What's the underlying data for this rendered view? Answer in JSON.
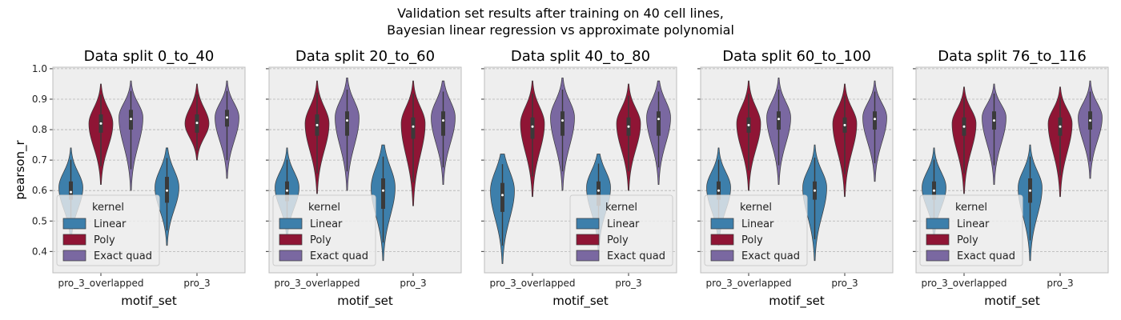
{
  "figure": {
    "title_line1": "Validation set results after training on 40 cell lines,",
    "title_line2": "Bayesian linear regression vs approximate polynomial"
  },
  "colors": {
    "Linear": "#3d7fab",
    "Poly": "#8f1535",
    "Exact quad": "#7a68a1",
    "panel_bg": "#eeeeee",
    "grid": "#b2b2b2"
  },
  "chart_data": [
    {
      "type": "violin",
      "title": "Data split 0_to_40",
      "xlabel": "motif_set",
      "ylabel": "pearson_r",
      "ylim": [
        0.33,
        1.005
      ],
      "yticks": [
        "0.4",
        "0.5",
        "0.6",
        "0.7",
        "0.8",
        "0.9",
        "1.0"
      ],
      "categories": [
        "pro_3_overlapped",
        "pro_3"
      ],
      "legend": {
        "title": "kernel",
        "placement": "lower-left",
        "entries": [
          "Linear",
          "Poly",
          "Exact quad"
        ]
      },
      "series": [
        {
          "name": "Linear",
          "min": [
            0.43,
            0.42
          ],
          "q1": [
            0.57,
            0.56
          ],
          "median": [
            0.595,
            0.6
          ],
          "q3": [
            0.63,
            0.645
          ],
          "max": [
            0.74,
            0.74
          ],
          "mode": [
            0.61,
            0.61
          ]
        },
        {
          "name": "Poly",
          "min": [
            0.62,
            0.7
          ],
          "q1": [
            0.79,
            0.79
          ],
          "median": [
            0.82,
            0.822
          ],
          "q3": [
            0.85,
            0.85
          ],
          "max": [
            0.95,
            0.95
          ],
          "mode": [
            0.82,
            0.82
          ]
        },
        {
          "name": "Exact quad",
          "min": [
            0.6,
            0.64
          ],
          "q1": [
            0.8,
            0.81
          ],
          "median": [
            0.835,
            0.84
          ],
          "q3": [
            0.865,
            0.865
          ],
          "max": [
            0.96,
            0.96
          ],
          "mode": [
            0.84,
            0.84
          ]
        }
      ]
    },
    {
      "type": "violin",
      "title": "Data split 20_to_60",
      "xlabel": "motif_set",
      "ylabel": "",
      "ylim": [
        0.33,
        1.005
      ],
      "yticks": [
        "0.4",
        "0.5",
        "0.6",
        "0.7",
        "0.8",
        "0.9",
        "1.0"
      ],
      "categories": [
        "pro_3_overlapped",
        "pro_3"
      ],
      "legend": {
        "title": "kernel",
        "placement": "lower-left",
        "entries": [
          "Linear",
          "Poly",
          "Exact quad"
        ]
      },
      "series": [
        {
          "name": "Linear",
          "min": [
            0.44,
            0.37
          ],
          "q1": [
            0.565,
            0.54
          ],
          "median": [
            0.6,
            0.6
          ],
          "q3": [
            0.63,
            0.64
          ],
          "max": [
            0.74,
            0.75
          ],
          "mode": [
            0.61,
            0.61
          ]
        },
        {
          "name": "Poly",
          "min": [
            0.59,
            0.55
          ],
          "q1": [
            0.78,
            0.77
          ],
          "median": [
            0.815,
            0.81
          ],
          "q3": [
            0.85,
            0.84
          ],
          "max": [
            0.96,
            0.96
          ],
          "mode": [
            0.82,
            0.82
          ]
        },
        {
          "name": "Exact quad",
          "min": [
            0.6,
            0.62
          ],
          "q1": [
            0.78,
            0.78
          ],
          "median": [
            0.83,
            0.83
          ],
          "q3": [
            0.86,
            0.86
          ],
          "max": [
            0.97,
            0.96
          ],
          "mode": [
            0.84,
            0.84
          ]
        }
      ]
    },
    {
      "type": "violin",
      "title": "Data split 40_to_80",
      "xlabel": "motif_set",
      "ylabel": "",
      "ylim": [
        0.33,
        1.005
      ],
      "yticks": [
        "0.4",
        "0.5",
        "0.6",
        "0.7",
        "0.8",
        "0.9",
        "1.0"
      ],
      "categories": [
        "pro_3_overlapped",
        "pro_3"
      ],
      "legend": {
        "title": "kernel",
        "placement": "lower-right",
        "entries": [
          "Linear",
          "Poly",
          "Exact quad"
        ]
      },
      "series": [
        {
          "name": "Linear",
          "min": [
            0.36,
            0.4
          ],
          "q1": [
            0.53,
            0.55
          ],
          "median": [
            0.585,
            0.6
          ],
          "q3": [
            0.625,
            0.63
          ],
          "max": [
            0.72,
            0.72
          ],
          "mode": [
            0.6,
            0.61
          ]
        },
        {
          "name": "Poly",
          "min": [
            0.58,
            0.6
          ],
          "q1": [
            0.77,
            0.78
          ],
          "median": [
            0.81,
            0.81
          ],
          "q3": [
            0.84,
            0.84
          ],
          "max": [
            0.96,
            0.95
          ],
          "mode": [
            0.82,
            0.82
          ]
        },
        {
          "name": "Exact quad",
          "min": [
            0.6,
            0.62
          ],
          "q1": [
            0.78,
            0.78
          ],
          "median": [
            0.83,
            0.835
          ],
          "q3": [
            0.86,
            0.86
          ],
          "max": [
            0.97,
            0.96
          ],
          "mode": [
            0.84,
            0.84
          ]
        }
      ]
    },
    {
      "type": "violin",
      "title": "Data split 60_to_100",
      "xlabel": "motif_set",
      "ylabel": "",
      "ylim": [
        0.33,
        1.005
      ],
      "yticks": [
        "0.4",
        "0.5",
        "0.6",
        "0.7",
        "0.8",
        "0.9",
        "1.0"
      ],
      "categories": [
        "pro_3_overlapped",
        "pro_3"
      ],
      "legend": {
        "title": "kernel",
        "placement": "lower-left",
        "entries": [
          "Linear",
          "Poly",
          "Exact quad"
        ]
      },
      "series": [
        {
          "name": "Linear",
          "min": [
            0.42,
            0.37
          ],
          "q1": [
            0.57,
            0.57
          ],
          "median": [
            0.6,
            0.6
          ],
          "q3": [
            0.63,
            0.63
          ],
          "max": [
            0.74,
            0.75
          ],
          "mode": [
            0.61,
            0.61
          ]
        },
        {
          "name": "Poly",
          "min": [
            0.6,
            0.58
          ],
          "q1": [
            0.79,
            0.79
          ],
          "median": [
            0.815,
            0.815
          ],
          "q3": [
            0.84,
            0.84
          ],
          "max": [
            0.96,
            0.95
          ],
          "mode": [
            0.82,
            0.82
          ]
        },
        {
          "name": "Exact quad",
          "min": [
            0.62,
            0.63
          ],
          "q1": [
            0.8,
            0.8
          ],
          "median": [
            0.835,
            0.835
          ],
          "q3": [
            0.86,
            0.86
          ],
          "max": [
            0.97,
            0.96
          ],
          "mode": [
            0.84,
            0.84
          ]
        }
      ]
    },
    {
      "type": "violin",
      "title": "Data split 76_to_116",
      "xlabel": "motif_set",
      "ylabel": "",
      "ylim": [
        0.33,
        1.005
      ],
      "yticks": [
        "0.4",
        "0.5",
        "0.6",
        "0.7",
        "0.8",
        "0.9",
        "1.0"
      ],
      "categories": [
        "pro_3_overlapped",
        "pro_3"
      ],
      "legend": {
        "title": "kernel",
        "placement": "lower-left",
        "entries": [
          "Linear",
          "Poly",
          "Exact quad"
        ]
      },
      "series": [
        {
          "name": "Linear",
          "min": [
            0.44,
            0.37
          ],
          "q1": [
            0.57,
            0.56
          ],
          "median": [
            0.6,
            0.6
          ],
          "q3": [
            0.63,
            0.64
          ],
          "max": [
            0.74,
            0.75
          ],
          "mode": [
            0.61,
            0.61
          ]
        },
        {
          "name": "Poly",
          "min": [
            0.59,
            0.58
          ],
          "q1": [
            0.78,
            0.78
          ],
          "median": [
            0.81,
            0.81
          ],
          "q3": [
            0.84,
            0.84
          ],
          "max": [
            0.94,
            0.94
          ],
          "mode": [
            0.82,
            0.82
          ]
        },
        {
          "name": "Exact quad",
          "min": [
            0.62,
            0.64
          ],
          "q1": [
            0.8,
            0.8
          ],
          "median": [
            0.83,
            0.83
          ],
          "q3": [
            0.86,
            0.86
          ],
          "max": [
            0.95,
            0.96
          ],
          "mode": [
            0.84,
            0.84
          ]
        }
      ]
    }
  ]
}
